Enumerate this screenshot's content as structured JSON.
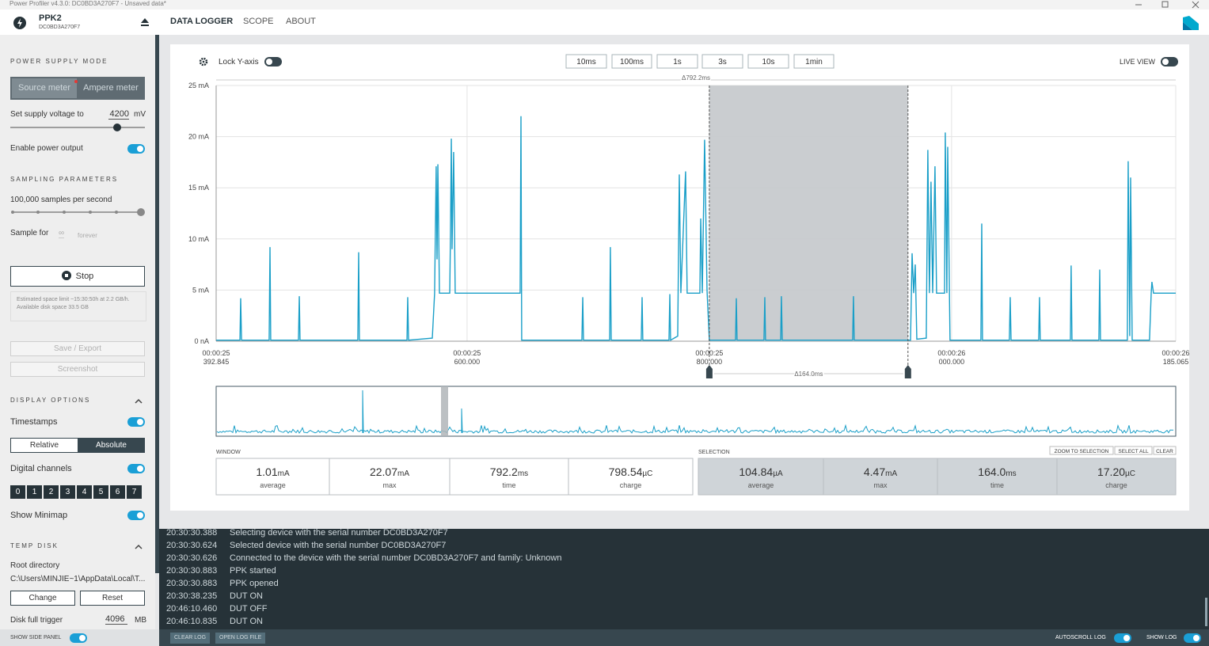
{
  "window": {
    "title": "Power Profiler v4.3.0: DC0BD3A270F7 - Unsaved data*"
  },
  "header": {
    "device": "PPK2",
    "serial": "DC0BD3A270F7",
    "tabs": [
      "DATA LOGGER",
      "SCOPE",
      "ABOUT"
    ]
  },
  "sidebar": {
    "power_supply_mode": {
      "heading": "POWER SUPPLY MODE",
      "options": [
        "Source meter",
        "Ampere meter"
      ],
      "voltage_label": "Set supply voltage to",
      "voltage": "4200",
      "voltage_unit": "mV",
      "enable_power": "Enable power output"
    },
    "sampling": {
      "heading": "SAMPLING PARAMETERS",
      "rate": "100,000 samples per second",
      "sample_for": "Sample for",
      "duration": "∞",
      "duration_unit": "forever",
      "stop": "Stop",
      "space_note": "Estimated space limit ~15:30:50h at 2.2 GB/h. Available disk space 33.5 GB"
    },
    "actions": [
      "Save / Export",
      "Screenshot"
    ],
    "display": {
      "heading": "DISPLAY OPTIONS",
      "timestamps": "Timestamps",
      "time_modes": [
        "Relative",
        "Absolute"
      ],
      "digital": "Digital channels",
      "channels": [
        "0",
        "1",
        "2",
        "3",
        "4",
        "5",
        "6",
        "7"
      ],
      "minimap": "Show Minimap"
    },
    "temp_disk": {
      "heading": "TEMP DISK",
      "root_label": "Root directory",
      "root_path": "C:\\Users\\MINJIE~1\\AppData\\Local\\T...",
      "buttons": [
        "Change",
        "Reset"
      ],
      "trigger_label": "Disk full trigger",
      "trigger": "4096",
      "trigger_unit": "MB"
    },
    "side_panel": "SHOW SIDE PANEL"
  },
  "toolbar": {
    "lock": "Lock Y-axis",
    "windows": [
      "10ms",
      "100ms",
      "1s",
      "3s",
      "10s",
      "1min"
    ],
    "live": "LIVE VIEW"
  },
  "chart_data": {
    "type": "line",
    "window_delta": "Δ792.2ms",
    "selection_delta": "Δ164.0ms",
    "xlim": [
      25.392845,
      26.185065
    ],
    "xticks": [
      {
        "value": 25.392845,
        "label": "00:00:25\n392.845"
      },
      {
        "value": 25.6,
        "label": "00:00:25\n600.000"
      },
      {
        "value": 25.8,
        "label": "00:00:25\n800.000"
      },
      {
        "value": 26.0,
        "label": "00:00:26\n000.000"
      },
      {
        "value": 26.185065,
        "label": "00:00:26\n185.065"
      }
    ],
    "ylim": [
      0,
      25
    ],
    "yticks": [
      {
        "value": 0,
        "label": "0 nA"
      },
      {
        "value": 5,
        "label": "5 mA"
      },
      {
        "value": 10,
        "label": "10 mA"
      },
      {
        "value": 15,
        "label": "15 mA"
      },
      {
        "value": 20,
        "label": "20 mA"
      },
      {
        "value": 25,
        "label": "25 mA"
      }
    ],
    "grid": true,
    "selection": [
      25.8,
      25.964
    ],
    "x": [
      25.392845,
      25.4125,
      25.4131,
      25.4138,
      25.4366,
      25.4373,
      25.4379,
      25.4608,
      25.4615,
      25.4621,
      25.5098,
      25.5105,
      25.5111,
      25.5504,
      25.551,
      25.5517,
      25.5713,
      25.5732,
      25.5745,
      25.5752,
      25.5759,
      25.5772,
      25.5857,
      25.5863,
      25.587,
      25.5876,
      25.5889,
      25.5902,
      25.6438,
      25.6445,
      25.6451,
      25.6948,
      25.6955,
      25.6961,
      25.7177,
      25.7183,
      25.719,
      25.7438,
      25.7445,
      25.7451,
      25.7667,
      25.7674,
      25.768,
      25.7739,
      25.7752,
      25.7765,
      25.7804,
      25.7817,
      25.7922,
      25.7929,
      25.7942,
      25.7961,
      25.7981,
      25.8,
      25.8216,
      25.8223,
      25.8229,
      25.8451,
      25.8458,
      25.8464,
      25.8589,
      25.8595,
      25.8602,
      25.9183,
      25.919,
      25.9196,
      25.9661,
      25.9674,
      25.9687,
      25.97,
      25.9713,
      25.9791,
      25.9804,
      25.9817,
      25.983,
      25.9844,
      25.9863,
      25.9876,
      25.9942,
      25.9948,
      25.9961,
      25.9968,
      25.9987,
      26.0242,
      26.0249,
      26.0255,
      26.0477,
      26.0484,
      26.0491,
      26.0719,
      26.0726,
      26.0732,
      26.0981,
      26.0987,
      26.0994,
      26.1216,
      26.1223,
      26.1229,
      26.1451,
      26.1458,
      26.1471,
      26.1478,
      26.1491,
      26.1634,
      26.1648,
      26.1654,
      26.1667,
      26.185065
    ],
    "series": [
      {
        "color": "#1a9fc8",
        "values": [
          0.1,
          0.1,
          4.2,
          0.1,
          0.1,
          9.2,
          0.1,
          0.1,
          4.4,
          0.1,
          0.1,
          8.7,
          0.1,
          0.1,
          4.3,
          0.1,
          0.3,
          4.7,
          17.1,
          8,
          17.3,
          4.7,
          4.7,
          10.5,
          19.8,
          9,
          18.5,
          4.7,
          4.7,
          22.0,
          0.1,
          0.1,
          4.3,
          0.1,
          0.1,
          9.2,
          0.1,
          0.1,
          4.3,
          0.1,
          0.1,
          4.6,
          0.1,
          0.5,
          16.3,
          4.7,
          16.6,
          4.7,
          4.7,
          12,
          4.7,
          19.7,
          5,
          0.1,
          0.1,
          4.2,
          0.1,
          0.1,
          4.3,
          0.1,
          0.1,
          4.4,
          0.1,
          0.1,
          4.4,
          0.1,
          0.1,
          8.6,
          4.7,
          7.5,
          0.2,
          0.3,
          18.7,
          4.7,
          15.6,
          4.7,
          17.1,
          4.7,
          4.7,
          20.4,
          4.7,
          19.0,
          0.1,
          0.1,
          11.5,
          0.1,
          0.1,
          4.3,
          0.1,
          0.1,
          4.3,
          0.1,
          0.1,
          7.4,
          0.1,
          0.1,
          7.0,
          0.1,
          0.1,
          17.6,
          0.5,
          16.0,
          0.1,
          0.1,
          4.7,
          5.8,
          4.7,
          4.7
        ]
      }
    ]
  },
  "stats": {
    "window_label": "WINDOW",
    "selection_label": "SELECTION",
    "selection_actions": [
      "ZOOM TO SELECTION",
      "SELECT ALL",
      "CLEAR"
    ],
    "window": [
      {
        "value": "1.01",
        "unit": "mA",
        "label": "average"
      },
      {
        "value": "22.07",
        "unit": "mA",
        "label": "max"
      },
      {
        "value": "792.2",
        "unit": "ms",
        "label": "time"
      },
      {
        "value": "798.54",
        "unit": "µC",
        "label": "charge"
      }
    ],
    "selection": [
      {
        "value": "104.84",
        "unit": "µA",
        "label": "average"
      },
      {
        "value": "4.47",
        "unit": "mA",
        "label": "max"
      },
      {
        "value": "164.0",
        "unit": "ms",
        "label": "time"
      },
      {
        "value": "17.20",
        "unit": "µC",
        "label": "charge"
      }
    ]
  },
  "log": {
    "entries": [
      {
        "time": "20:30:30.388",
        "message": "Selecting device with the serial number DC0BD3A270F7"
      },
      {
        "time": "20:30:30.624",
        "message": "Selected device with the serial number DC0BD3A270F7"
      },
      {
        "time": "20:30:30.626",
        "message": "Connected to the device with the serial number DC0BD3A270F7 and family: Unknown"
      },
      {
        "time": "20:30:30.883",
        "message": "PPK started"
      },
      {
        "time": "20:30:30.883",
        "message": "PPK opened"
      },
      {
        "time": "20:30:38.235",
        "message": "DUT ON"
      },
      {
        "time": "20:46:10.460",
        "message": "DUT OFF"
      },
      {
        "time": "20:46:10.835",
        "message": "DUT ON"
      }
    ]
  },
  "footer": {
    "buttons": [
      "CLEAR LOG",
      "OPEN LOG FILE"
    ],
    "autoscroll": "AUTOSCROLL LOG",
    "show_log": "SHOW LOG"
  }
}
